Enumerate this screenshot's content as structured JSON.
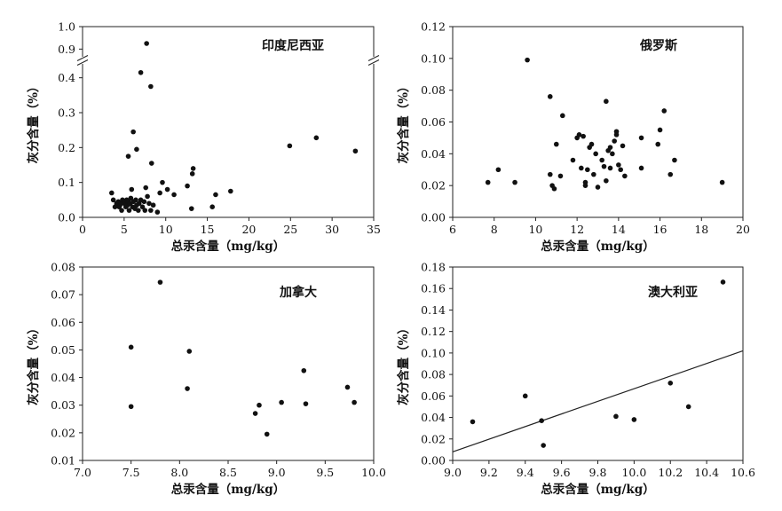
{
  "chart_data": [
    {
      "type": "scatter",
      "title": "印度尼西亚",
      "xlabel": "总汞含量（mg/kg）",
      "ylabel": "灰分含量（%）",
      "xlim": [
        0,
        35
      ],
      "ylim": [
        0,
        1.0
      ],
      "y_axis_break": [
        0.45,
        0.85
      ],
      "xticks": [
        "0",
        "5",
        "10",
        "15",
        "20",
        "25",
        "30",
        "35"
      ],
      "yticks": [
        "0.0",
        "0.1",
        "0.2",
        "0.3",
        "0.4",
        "0.9",
        "1.0"
      ],
      "points": [
        [
          3.5,
          0.07
        ],
        [
          3.7,
          0.05
        ],
        [
          3.9,
          0.03
        ],
        [
          4.1,
          0.04
        ],
        [
          4.3,
          0.045
        ],
        [
          4.4,
          0.03
        ],
        [
          4.5,
          0.035
        ],
        [
          4.6,
          0.04
        ],
        [
          4.7,
          0.02
        ],
        [
          4.8,
          0.05
        ],
        [
          5.0,
          0.04
        ],
        [
          5.1,
          0.045
        ],
        [
          5.2,
          0.03
        ],
        [
          5.3,
          0.05
        ],
        [
          5.4,
          0.035
        ],
        [
          5.5,
          0.045
        ],
        [
          5.6,
          0.02
        ],
        [
          5.7,
          0.04
        ],
        [
          5.8,
          0.055
        ],
        [
          6.0,
          0.03
        ],
        [
          6.1,
          0.045
        ],
        [
          6.3,
          0.025
        ],
        [
          6.4,
          0.05
        ],
        [
          6.5,
          0.035
        ],
        [
          6.7,
          0.02
        ],
        [
          6.8,
          0.04
        ],
        [
          7.0,
          0.05
        ],
        [
          7.2,
          0.03
        ],
        [
          7.4,
          0.045
        ],
        [
          7.5,
          0.02
        ],
        [
          7.6,
          0.085
        ],
        [
          7.8,
          0.06
        ],
        [
          8.0,
          0.04
        ],
        [
          8.2,
          0.02
        ],
        [
          8.5,
          0.035
        ],
        [
          9.0,
          0.015
        ],
        [
          5.9,
          0.08
        ],
        [
          9.3,
          0.07
        ],
        [
          9.6,
          0.1
        ],
        [
          10.2,
          0.08
        ],
        [
          11.0,
          0.065
        ],
        [
          12.6,
          0.09
        ],
        [
          13.1,
          0.025
        ],
        [
          13.2,
          0.125
        ],
        [
          13.3,
          0.14
        ],
        [
          15.6,
          0.03
        ],
        [
          16.0,
          0.065
        ],
        [
          17.8,
          0.075
        ],
        [
          5.5,
          0.175
        ],
        [
          6.5,
          0.195
        ],
        [
          8.3,
          0.155
        ],
        [
          6.1,
          0.245
        ],
        [
          7.0,
          0.415
        ],
        [
          8.2,
          0.375
        ],
        [
          7.7,
          0.925
        ],
        [
          24.9,
          0.205
        ],
        [
          28.1,
          0.228
        ],
        [
          32.8,
          0.19
        ]
      ]
    },
    {
      "type": "scatter",
      "title": "俄罗斯",
      "xlabel": "总汞含量（mg/kg）",
      "ylabel": "灰分含量（%）",
      "xlim": [
        6,
        20
      ],
      "ylim": [
        0,
        0.12
      ],
      "xticks": [
        "6",
        "8",
        "10",
        "12",
        "14",
        "16",
        "18",
        "20"
      ],
      "yticks": [
        "0.00",
        "0.02",
        "0.04",
        "0.06",
        "0.08",
        "0.10",
        "0.12"
      ],
      "points": [
        [
          7.7,
          0.022
        ],
        [
          8.2,
          0.03
        ],
        [
          9.0,
          0.022
        ],
        [
          9.6,
          0.099
        ],
        [
          10.7,
          0.076
        ],
        [
          10.7,
          0.027
        ],
        [
          10.8,
          0.02
        ],
        [
          10.9,
          0.018
        ],
        [
          11.0,
          0.046
        ],
        [
          11.2,
          0.026
        ],
        [
          11.3,
          0.064
        ],
        [
          11.8,
          0.036
        ],
        [
          12.0,
          0.05
        ],
        [
          12.1,
          0.052
        ],
        [
          12.2,
          0.031
        ],
        [
          12.3,
          0.051
        ],
        [
          12.4,
          0.022
        ],
        [
          12.4,
          0.02
        ],
        [
          12.5,
          0.03
        ],
        [
          12.6,
          0.044
        ],
        [
          12.7,
          0.046
        ],
        [
          12.8,
          0.027
        ],
        [
          12.9,
          0.04
        ],
        [
          13.0,
          0.019
        ],
        [
          13.2,
          0.036
        ],
        [
          13.3,
          0.032
        ],
        [
          13.4,
          0.073
        ],
        [
          13.4,
          0.023
        ],
        [
          13.5,
          0.042
        ],
        [
          13.6,
          0.031
        ],
        [
          13.6,
          0.044
        ],
        [
          13.7,
          0.04
        ],
        [
          13.8,
          0.048
        ],
        [
          13.9,
          0.054
        ],
        [
          13.9,
          0.052
        ],
        [
          14.0,
          0.033
        ],
        [
          14.1,
          0.03
        ],
        [
          14.2,
          0.045
        ],
        [
          14.3,
          0.026
        ],
        [
          15.1,
          0.05
        ],
        [
          15.1,
          0.031
        ],
        [
          15.9,
          0.046
        ],
        [
          16.0,
          0.055
        ],
        [
          16.2,
          0.067
        ],
        [
          16.5,
          0.027
        ],
        [
          16.7,
          0.036
        ],
        [
          19.0,
          0.022
        ]
      ]
    },
    {
      "type": "scatter",
      "title": "加拿大",
      "xlabel": "总汞含量（mg/kg）",
      "ylabel": "灰分含量（%）",
      "xlim": [
        7.0,
        10.0
      ],
      "ylim": [
        0.01,
        0.08
      ],
      "xticks": [
        "7.0",
        "7.5",
        "8.0",
        "8.5",
        "9.0",
        "9.5",
        "10.0"
      ],
      "yticks": [
        "0.01",
        "0.02",
        "0.03",
        "0.04",
        "0.05",
        "0.06",
        "0.07",
        "0.08"
      ],
      "points": [
        [
          7.5,
          0.051
        ],
        [
          7.5,
          0.0295
        ],
        [
          7.8,
          0.0745
        ],
        [
          8.1,
          0.0495
        ],
        [
          8.08,
          0.036
        ],
        [
          8.78,
          0.027
        ],
        [
          8.82,
          0.03
        ],
        [
          8.9,
          0.0195
        ],
        [
          9.05,
          0.031
        ],
        [
          9.28,
          0.0425
        ],
        [
          9.3,
          0.0305
        ],
        [
          9.73,
          0.0365
        ],
        [
          9.8,
          0.031
        ]
      ]
    },
    {
      "type": "scatter",
      "title": "澳大利亚",
      "xlabel": "总汞含量（mg/kg）",
      "ylabel": "灰分含量（%）",
      "xlim": [
        9.0,
        10.6
      ],
      "ylim": [
        0,
        0.18
      ],
      "xticks": [
        "9.0",
        "9.2",
        "9.4",
        "9.6",
        "9.8",
        "10.0",
        "10.2",
        "10.4",
        "10.6"
      ],
      "yticks": [
        "0.00",
        "0.02",
        "0.04",
        "0.06",
        "0.08",
        "0.10",
        "0.12",
        "0.14",
        "0.16",
        "0.18"
      ],
      "points": [
        [
          9.11,
          0.036
        ],
        [
          9.4,
          0.06
        ],
        [
          9.49,
          0.037
        ],
        [
          9.5,
          0.014
        ],
        [
          9.9,
          0.041
        ],
        [
          10.0,
          0.038
        ],
        [
          10.2,
          0.072
        ],
        [
          10.3,
          0.05
        ],
        [
          10.49,
          0.166
        ]
      ],
      "trendline": [
        [
          9.0,
          0.008
        ],
        [
          10.6,
          0.102
        ]
      ]
    }
  ]
}
